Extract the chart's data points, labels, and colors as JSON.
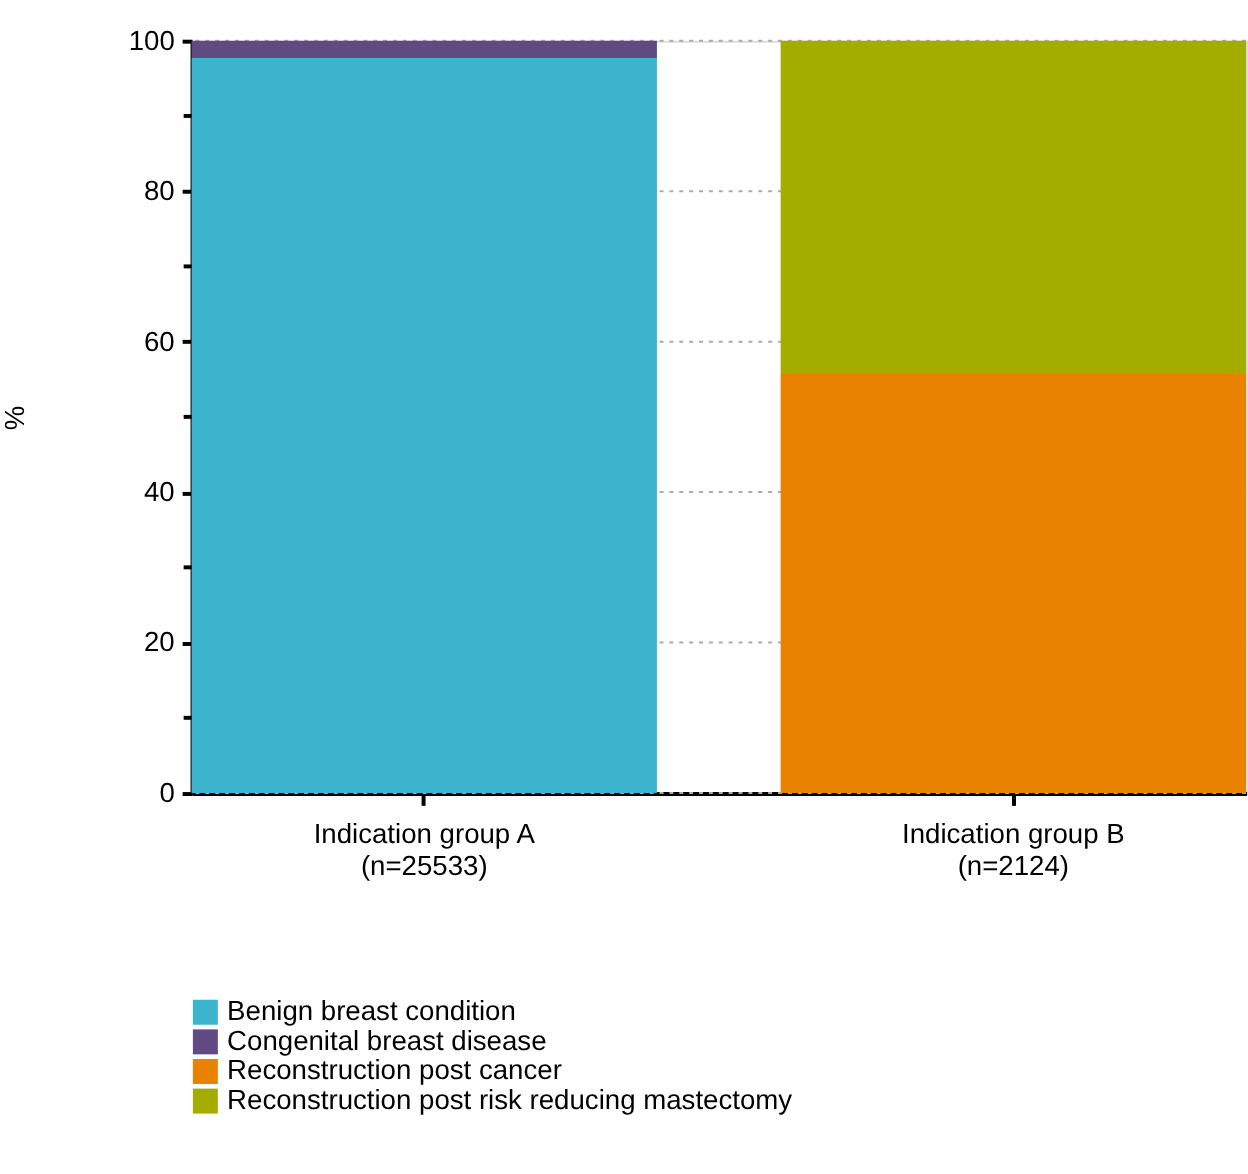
{
  "chart_data": {
    "type": "bar",
    "stacked": true,
    "ylabel": "%",
    "categories": [
      "Indication group A\n(n=25533)",
      "Indication group B\n(n=2124)"
    ],
    "series": [
      {
        "name": "Benign breast condition",
        "color": "#3cb4ce",
        "values": [
          97.7,
          null
        ]
      },
      {
        "name": "Congenital breast disease",
        "color": "#5f4b82",
        "values": [
          2.3,
          null
        ]
      },
      {
        "name": "Reconstruction post cancer",
        "color": "#e88200",
        "values": [
          null,
          55.7
        ]
      },
      {
        "name": "Reconstruction post risk reducing mastectomy",
        "color": "#a2ad00",
        "values": [
          null,
          44.3
        ]
      }
    ],
    "ylim": [
      0,
      100
    ],
    "yticks": [
      0,
      {
        "value": 10,
        "label": null
      },
      20,
      {
        "value": 30,
        "label": null
      },
      40,
      {
        "value": 50,
        "label": null
      },
      60,
      {
        "value": 70,
        "label": null
      },
      80,
      {
        "value": 90,
        "label": null
      },
      100
    ],
    "grid": "y",
    "legend": "bottom"
  }
}
